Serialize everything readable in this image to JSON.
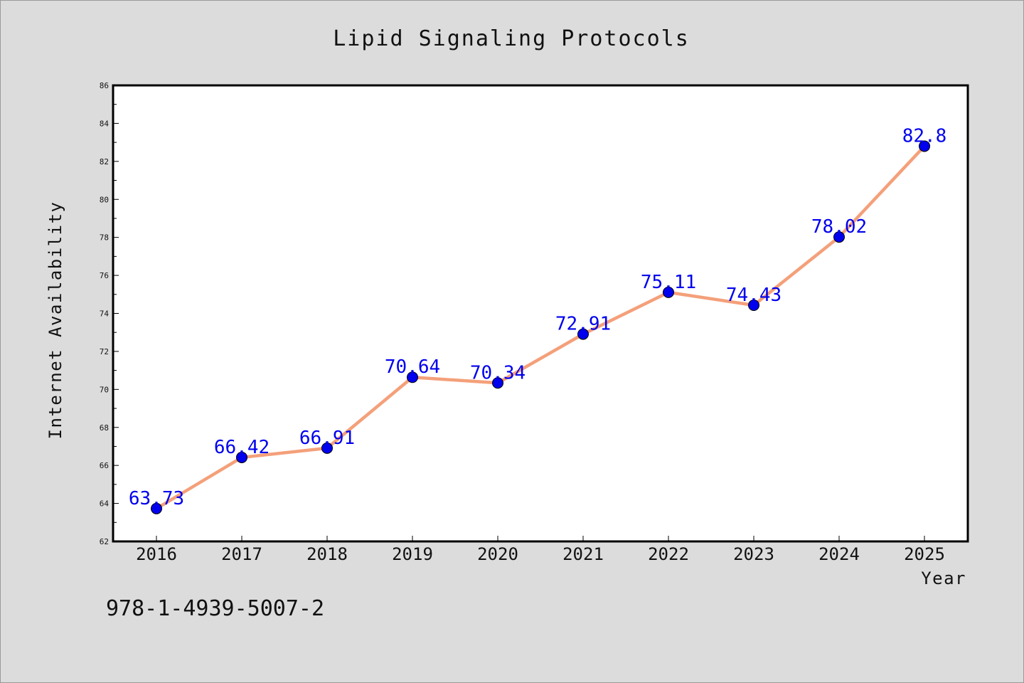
{
  "chart_data": {
    "type": "line",
    "title": "Lipid Signaling Protocols",
    "xlabel": "Year",
    "ylabel": "Internet Availability",
    "categories": [
      "2016",
      "2017",
      "2018",
      "2019",
      "2020",
      "2021",
      "2022",
      "2023",
      "2024",
      "2025"
    ],
    "series": [
      {
        "values": [
          63.73,
          66.42,
          66.91,
          70.64,
          70.34,
          72.91,
          75.11,
          74.43,
          78.02,
          82.8
        ],
        "labels": [
          "63.73",
          "66.42",
          "66.91",
          "70.64",
          "70.34",
          "72.91",
          "75.11",
          "74.43",
          "78.02",
          "82.8"
        ],
        "line_color": "#f4a07a",
        "marker_color": "#0000ee"
      }
    ],
    "ylim": [
      62,
      86
    ],
    "yticks": [
      "62",
      "64",
      "66",
      "68",
      "70",
      "72",
      "74",
      "76",
      "78",
      "80",
      "82",
      "84",
      "86"
    ],
    "grid": false,
    "legend": "none"
  },
  "footnote": "978-1-4939-5007-2",
  "colors": {
    "background": "#dcdcdc",
    "plot_background": "#ffffff",
    "label_color": "#0000ee"
  }
}
